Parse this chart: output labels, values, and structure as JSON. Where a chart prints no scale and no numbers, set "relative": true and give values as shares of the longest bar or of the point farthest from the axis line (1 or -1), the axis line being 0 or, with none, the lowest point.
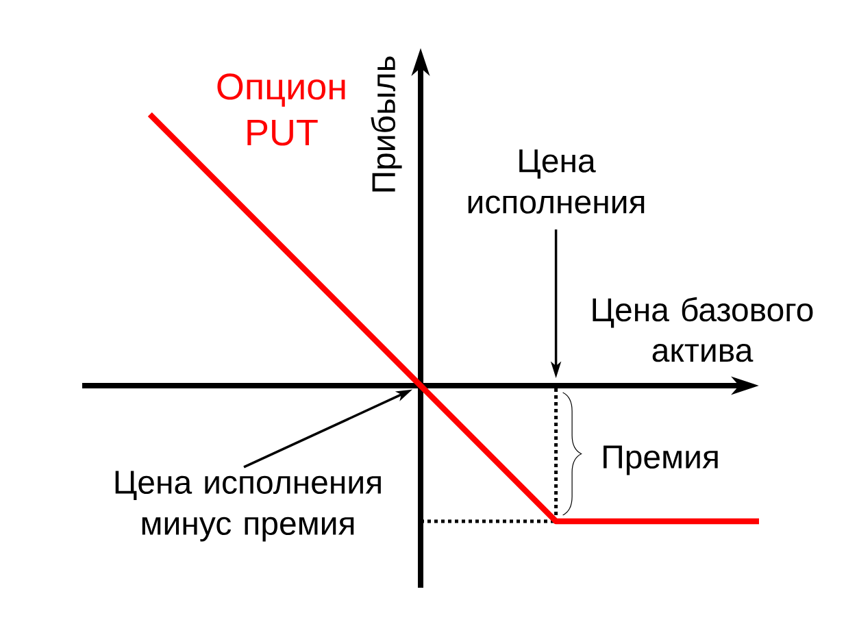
{
  "chart_data": {
    "type": "line",
    "relative": true,
    "xlabel": "Цена базового актива",
    "ylabel": "Прибыль",
    "categories": [
      null,
      null,
      null,
      null,
      null,
      null,
      null,
      null,
      null,
      null
    ],
    "series": [
      {
        "name": "Опцион PUT",
        "color": "#ff0000",
        "values": [
          1,
          0.75,
          0.5,
          0.25,
          0,
          -0.25,
          -0.5,
          -0.5,
          -0.5,
          -0.5
        ]
      }
    ],
    "ref_lines": [
      {
        "axis": "y",
        "value": -0.5,
        "line_style": "dotted",
        "color": "#000000"
      }
    ],
    "annotations": [
      "Цена исполнения",
      "Цена исполнения минус премия",
      "Премия"
    ]
  }
}
